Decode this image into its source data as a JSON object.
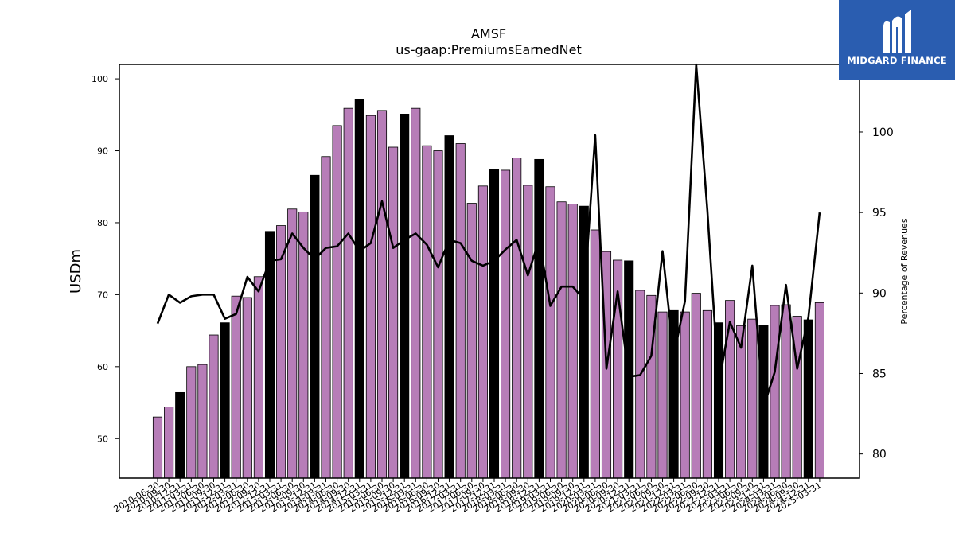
{
  "chart_data": {
    "type": "bar",
    "title": "AMSF",
    "subtitle": "us-gaap:PremiumsEarnedNet",
    "ylabel": "USDm",
    "y2label": "Percentage of Revenues",
    "ylim": [
      44.5,
      102
    ],
    "y2lim": [
      78.5,
      104.2
    ],
    "yticks": [
      50,
      60,
      70,
      80,
      90,
      100
    ],
    "y2ticks": [
      80,
      85,
      90,
      95,
      100
    ],
    "colors": {
      "bar": "#b77db8",
      "bar_highlight": "#000000",
      "line": "#000000"
    },
    "categories": [
      "2010-06-30",
      "2010-09-30",
      "2010-12-31",
      "2011-03-31",
      "2011-06-30",
      "2011-09-30",
      "2011-12-31",
      "2012-03-31",
      "2012-06-30",
      "2012-09-30",
      "2012-12-31",
      "2013-03-31",
      "2013-06-30",
      "2013-09-30",
      "2013-12-31",
      "2014-03-31",
      "2014-06-30",
      "2014-09-30",
      "2014-12-31",
      "2015-03-31",
      "2015-06-30",
      "2015-09-30",
      "2015-12-31",
      "2016-03-31",
      "2016-06-30",
      "2016-09-30",
      "2016-12-31",
      "2017-03-31",
      "2017-06-30",
      "2017-09-30",
      "2017-12-31",
      "2018-03-31",
      "2018-06-30",
      "2018-09-30",
      "2018-12-31",
      "2019-03-31",
      "2019-06-30",
      "2019-09-30",
      "2019-12-31",
      "2020-03-31",
      "2020-06-30",
      "2020-09-30",
      "2020-12-31",
      "2021-03-31",
      "2021-06-30",
      "2021-09-30",
      "2021-12-31",
      "2022-03-31",
      "2022-06-30",
      "2022-09-30",
      "2022-12-31",
      "2023-03-31",
      "2023-06-30",
      "2023-09-30",
      "2023-12-31",
      "2024-03-31",
      "2024-06-30",
      "2024-09-30",
      "2024-12-31",
      "2025-03-31"
    ],
    "xtick_labels": [
      "2010-06-30",
      "2010-09-30",
      "2010-12-31",
      "2011-03-31",
      "2011-06-30",
      "2011-09-30",
      "2011-12-31",
      "2012-03-31",
      "2012-06-30",
      "2012-09-30",
      "2012-12-31",
      "2013-03-31",
      "2013-06-30",
      "2013-09-30",
      "2013-12-31",
      "2014-03-31",
      "2014-06-30",
      "2014-09-30",
      "2014-12-31",
      "2015-03-31",
      "2015-06-30",
      "2015-09-30",
      "2015-12-31",
      "2016-03-31",
      "2016-06-30",
      "2016-09-30",
      "2016-12-31",
      "2017-03-31",
      "2017-06-30",
      "2017-09-30",
      "2017-12-31",
      "2018-03-31",
      "2018-06-30",
      "2018-09-30",
      "2018-12-31",
      "2019-03-31",
      "2019-06-30",
      "2019-09-30",
      "2019-12-31",
      "2020-03-31",
      "2020-06-30",
      "2020-09-30",
      "2020-12-31",
      "2021-03-31",
      "2021-06-30",
      "2021-09-30",
      "2021-12-31",
      "2022-03-31",
      "2022-06-30",
      "2022-09-30",
      "2022-12-31",
      "2023-03-31",
      "2023-06-30",
      "2023-09-30",
      "2023-12-31",
      "2024-03-31",
      "2024-06-30",
      "2024-09-30",
      "2024-12-31",
      "2025-03-31"
    ],
    "series": [
      {
        "type": "bar",
        "axis": "left",
        "values": [
          53.0,
          54.4,
          56.4,
          60.0,
          60.3,
          64.4,
          66.1,
          69.8,
          69.6,
          72.5,
          78.8,
          79.6,
          81.9,
          81.5,
          86.6,
          89.2,
          93.5,
          95.9,
          97.1,
          94.9,
          95.6,
          90.5,
          95.1,
          95.9,
          90.7,
          90.0,
          92.1,
          91.0,
          82.7,
          85.1,
          87.4,
          87.3,
          89.0,
          85.2,
          88.8,
          85.0,
          82.9,
          82.6,
          82.3,
          79.0,
          76.0,
          74.8,
          74.7,
          70.6,
          69.9,
          67.6,
          67.8,
          67.6,
          70.2,
          67.8,
          66.1,
          69.2,
          65.7,
          66.6,
          65.7,
          68.5,
          68.6,
          67.0,
          66.5,
          68.9
        ],
        "highlight": [
          false,
          false,
          true,
          false,
          false,
          false,
          true,
          false,
          false,
          false,
          true,
          false,
          false,
          false,
          true,
          false,
          false,
          false,
          true,
          false,
          false,
          false,
          true,
          false,
          false,
          false,
          true,
          false,
          false,
          false,
          true,
          false,
          false,
          false,
          true,
          false,
          false,
          false,
          true,
          false,
          false,
          false,
          true,
          false,
          false,
          false,
          true,
          false,
          false,
          false,
          true,
          false,
          false,
          false,
          true,
          false,
          false,
          false,
          true,
          false
        ]
      },
      {
        "type": "line",
        "axis": "right",
        "values": [
          88.1,
          89.9,
          89.4,
          89.8,
          89.9,
          89.9,
          88.4,
          88.7,
          91.0,
          90.1,
          92.0,
          92.1,
          93.7,
          92.8,
          92.1,
          92.8,
          92.9,
          93.7,
          92.6,
          93.1,
          95.7,
          92.8,
          93.3,
          93.7,
          93.0,
          91.6,
          93.3,
          93.1,
          92.0,
          91.7,
          92.0,
          92.7,
          93.3,
          91.1,
          93.3,
          89.2,
          90.4,
          90.4,
          89.6,
          99.8,
          85.3,
          90.1,
          84.8,
          84.9,
          86.1,
          92.6,
          86.1,
          89.5,
          104.2,
          95.1,
          84.3,
          88.2,
          86.6,
          91.7,
          82.9,
          85.1,
          90.5,
          85.3,
          88.5,
          95.0
        ]
      }
    ]
  },
  "logo": {
    "text": "MIDGARD FINANCE"
  }
}
